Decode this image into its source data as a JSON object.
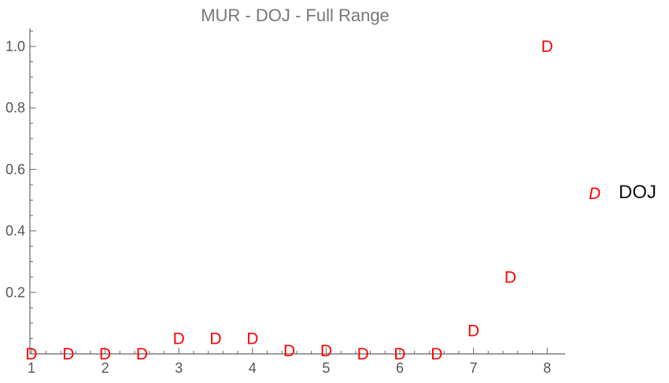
{
  "chart_data": {
    "type": "scatter",
    "title": "MUR - DOJ - Full Range",
    "xlabel": "",
    "ylabel": "",
    "xlim": [
      0.95,
      8.15
    ],
    "ylim": [
      0,
      1.05
    ],
    "x_ticks": [
      1,
      2,
      3,
      4,
      5,
      6,
      7,
      8
    ],
    "y_ticks": [
      0.2,
      0.4,
      0.6,
      0.8,
      1.0
    ],
    "y_tick_labels": [
      "0.2",
      "0.4",
      "0.6",
      "0.8",
      "1.0"
    ],
    "grid": false,
    "legend_position": "right",
    "series": [
      {
        "name": "DOJ",
        "marker": "D",
        "color": "#ff0000",
        "x": [
          1,
          1.5,
          2,
          2.5,
          3,
          3.5,
          4,
          4.5,
          5,
          5.5,
          6,
          6.5,
          7,
          7.5,
          8
        ],
        "y": [
          0,
          0,
          0,
          0,
          0.05,
          0.05,
          0.05,
          0.01,
          0.01,
          0,
          0,
          0,
          0.075,
          0.25,
          1.0
        ]
      }
    ]
  }
}
